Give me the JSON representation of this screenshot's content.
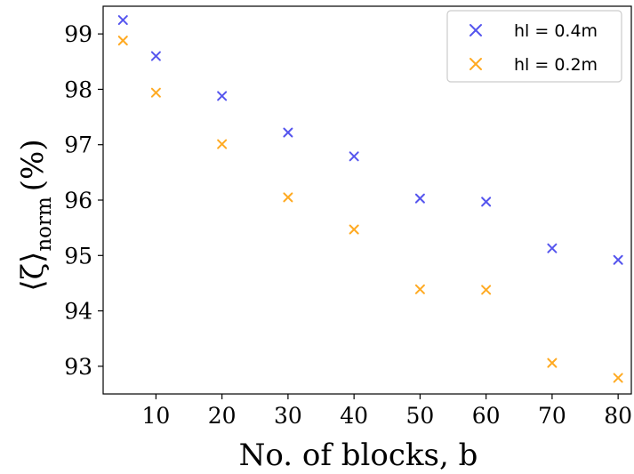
{
  "chart_data": {
    "type": "scatter",
    "title": "",
    "xlabel": "No. of blocks, b",
    "ylabel_main": "⟨ζ⟩",
    "ylabel_sub": "norm",
    "ylabel_unit": "(%)",
    "xlim": [
      2,
      82
    ],
    "ylim": [
      92.5,
      99.5
    ],
    "xticks": [
      10,
      20,
      30,
      40,
      50,
      60,
      70,
      80
    ],
    "yticks": [
      93,
      94,
      95,
      96,
      97,
      98,
      99
    ],
    "grid": false,
    "legend_position": "top-right",
    "marker": "x",
    "series": [
      {
        "name": "hl = 0.4m",
        "color": "#5555ee",
        "x": [
          5,
          10,
          20,
          30,
          40,
          50,
          60,
          70,
          80
        ],
        "y": [
          99.25,
          98.6,
          97.88,
          97.22,
          96.79,
          96.03,
          95.97,
          95.13,
          94.92
        ]
      },
      {
        "name": "hl = 0.2m",
        "color": "#ffaa22",
        "x": [
          5,
          10,
          20,
          30,
          40,
          50,
          60,
          70,
          80
        ],
        "y": [
          98.88,
          97.94,
          97.01,
          96.05,
          95.47,
          94.39,
          94.38,
          93.06,
          92.79
        ]
      }
    ]
  }
}
